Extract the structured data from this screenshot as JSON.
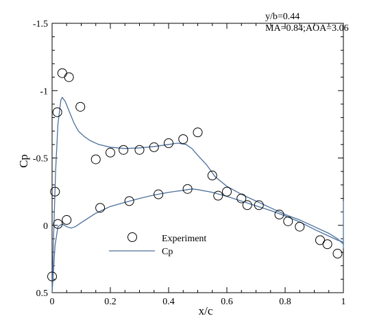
{
  "chart_data": {
    "type": "scatter",
    "xlabel": "x/c",
    "ylabel": "Cp",
    "xlim": [
      0,
      1
    ],
    "ylim": [
      0.5,
      -1.5
    ],
    "y_axis_inverted": true,
    "grid": false,
    "legend_position": "lower-left",
    "annotations": [
      "y/b=0.44",
      "MA=0.84;AOA=3.06"
    ],
    "x_ticks": [
      "0",
      "0.2",
      "0.4",
      "0.6",
      "0.8",
      "1"
    ],
    "y_ticks": [
      "-1.5",
      "-1",
      "-0.5",
      "0",
      "0.5"
    ],
    "series": [
      {
        "name": "Experiment",
        "marker": "open-circle",
        "color": "#000000",
        "points": [
          [
            0.035,
            -1.13
          ],
          [
            0.058,
            -1.1
          ],
          [
            0.018,
            -0.84
          ],
          [
            0.097,
            -0.88
          ],
          [
            0.15,
            -0.49
          ],
          [
            0.2,
            -0.54
          ],
          [
            0.245,
            -0.56
          ],
          [
            0.3,
            -0.56
          ],
          [
            0.35,
            -0.58
          ],
          [
            0.4,
            -0.61
          ],
          [
            0.45,
            -0.64
          ],
          [
            0.5,
            -0.69
          ],
          [
            0.55,
            -0.37
          ],
          [
            0.57,
            -0.22
          ],
          [
            0.6,
            -0.25
          ],
          [
            0.65,
            -0.2
          ],
          [
            0.67,
            -0.15
          ],
          [
            0.71,
            -0.15
          ],
          [
            0.78,
            -0.08
          ],
          [
            0.81,
            -0.03
          ],
          [
            0.85,
            0.01
          ],
          [
            0.92,
            0.11
          ],
          [
            0.945,
            0.14
          ],
          [
            0.98,
            0.21
          ],
          [
            0.01,
            -0.25
          ],
          [
            0.02,
            -0.01
          ],
          [
            0.05,
            -0.04
          ],
          [
            0.165,
            -0.13
          ],
          [
            0.265,
            -0.18
          ],
          [
            0.365,
            -0.23
          ],
          [
            0.465,
            -0.27
          ],
          [
            0.0,
            0.38
          ]
        ]
      },
      {
        "name": "Cp",
        "line": "solid",
        "color": "#4a6f9a",
        "upper": [
          [
            0.0,
            0.5
          ],
          [
            0.005,
            0.1
          ],
          [
            0.012,
            -0.4
          ],
          [
            0.02,
            -0.75
          ],
          [
            0.03,
            -0.93
          ],
          [
            0.035,
            -0.95
          ],
          [
            0.045,
            -0.92
          ],
          [
            0.06,
            -0.84
          ],
          [
            0.075,
            -0.76
          ],
          [
            0.09,
            -0.7
          ],
          [
            0.11,
            -0.66
          ],
          [
            0.13,
            -0.63
          ],
          [
            0.16,
            -0.6
          ],
          [
            0.2,
            -0.58
          ],
          [
            0.25,
            -0.57
          ],
          [
            0.3,
            -0.575
          ],
          [
            0.35,
            -0.585
          ],
          [
            0.4,
            -0.6
          ],
          [
            0.43,
            -0.61
          ],
          [
            0.46,
            -0.6
          ],
          [
            0.48,
            -0.57
          ],
          [
            0.5,
            -0.52
          ],
          [
            0.53,
            -0.45
          ],
          [
            0.56,
            -0.36
          ],
          [
            0.6,
            -0.29
          ],
          [
            0.65,
            -0.23
          ],
          [
            0.7,
            -0.18
          ],
          [
            0.75,
            -0.13
          ],
          [
            0.8,
            -0.08
          ],
          [
            0.85,
            -0.04
          ],
          [
            0.9,
            0.01
          ],
          [
            0.95,
            0.06
          ],
          [
            0.98,
            0.1
          ],
          [
            0.995,
            0.13
          ],
          [
            1.0,
            0.14
          ]
        ],
        "lower": [
          [
            0.0,
            0.5
          ],
          [
            0.01,
            0.15
          ],
          [
            0.02,
            0.01
          ],
          [
            0.035,
            -0.01
          ],
          [
            0.05,
            0.01
          ],
          [
            0.065,
            0.02
          ],
          [
            0.08,
            0.01
          ],
          [
            0.1,
            -0.02
          ],
          [
            0.15,
            -0.09
          ],
          [
            0.2,
            -0.14
          ],
          [
            0.25,
            -0.17
          ],
          [
            0.3,
            -0.2
          ],
          [
            0.35,
            -0.225
          ],
          [
            0.4,
            -0.245
          ],
          [
            0.45,
            -0.26
          ],
          [
            0.48,
            -0.27
          ],
          [
            0.5,
            -0.265
          ],
          [
            0.55,
            -0.245
          ],
          [
            0.6,
            -0.215
          ],
          [
            0.65,
            -0.18
          ],
          [
            0.7,
            -0.145
          ],
          [
            0.75,
            -0.11
          ],
          [
            0.8,
            -0.07
          ],
          [
            0.85,
            -0.025
          ],
          [
            0.9,
            0.03
          ],
          [
            0.95,
            0.08
          ],
          [
            0.98,
            0.11
          ],
          [
            0.995,
            0.12
          ],
          [
            1.0,
            0.13
          ]
        ],
        "trailing_edge": [
          [
            1.0,
            0.17
          ],
          [
            1.0,
            -0.18
          ]
        ]
      }
    ]
  }
}
